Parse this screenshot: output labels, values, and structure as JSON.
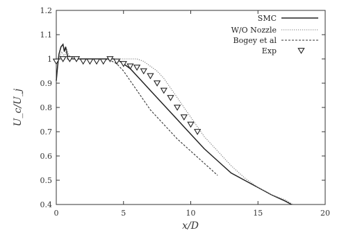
{
  "chart_data": {
    "type": "line",
    "title": "",
    "xlabel": "x/D",
    "ylabel": "U_c/U_j",
    "xlim": [
      0,
      20
    ],
    "ylim": [
      0.4,
      1.2
    ],
    "x_ticks": [
      "0",
      "5",
      "10",
      "15",
      "20"
    ],
    "y_ticks": [
      "0.4",
      "0.5",
      "0.6",
      "0.7",
      "0.8",
      "0.9",
      "1",
      "1.1",
      "1.2"
    ],
    "legend_position": "top-right",
    "grid": false,
    "series": [
      {
        "name": "SMC",
        "style": "solid",
        "color": "#222222",
        "x": [
          0,
          0.1,
          0.2,
          0.35,
          0.5,
          0.6,
          0.7,
          0.8,
          0.9,
          1.0,
          1.2,
          1.5,
          2,
          2.5,
          3,
          3.5,
          4,
          4.3,
          4.6,
          5,
          5.5,
          6,
          6.5,
          7,
          7.5,
          8,
          8.5,
          9,
          9.5,
          10,
          11,
          12,
          13,
          14,
          15,
          16,
          17,
          17.5
        ],
        "y": [
          0.91,
          0.97,
          1.02,
          1.05,
          1.06,
          1.03,
          1.05,
          1.02,
          1.0,
          1.01,
          1.0,
          1.0,
          1.0,
          1.0,
          1.0,
          1.0,
          1.0,
          1.0,
          0.995,
          0.98,
          0.96,
          0.93,
          0.9,
          0.87,
          0.84,
          0.81,
          0.78,
          0.75,
          0.72,
          0.69,
          0.63,
          0.58,
          0.53,
          0.5,
          0.47,
          0.44,
          0.415,
          0.4
        ]
      },
      {
        "name": "W/O Nozzle",
        "style": "dotted",
        "color": "#777777",
        "x": [
          0,
          0.2,
          0.4,
          0.6,
          0.8,
          1.0,
          1.5,
          2,
          3,
          4,
          5,
          5.5,
          6,
          6.5,
          7,
          7.5,
          8,
          8.5,
          9,
          9.5,
          10,
          10.5,
          11,
          12,
          13,
          14,
          15,
          16,
          17,
          17.6
        ],
        "y": [
          0.99,
          1.0,
          1.03,
          1.01,
          1.04,
          1.0,
          1.0,
          1.0,
          1.0,
          1.0,
          1.0,
          1.0,
          1.0,
          0.99,
          0.97,
          0.95,
          0.92,
          0.88,
          0.84,
          0.8,
          0.76,
          0.72,
          0.68,
          0.62,
          0.56,
          0.51,
          0.47,
          0.44,
          0.42,
          0.4
        ]
      },
      {
        "name": "Bogey et al",
        "style": "dashed",
        "color": "#333333",
        "x": [
          0,
          0.5,
          1,
          2,
          3,
          3.5,
          4,
          4.5,
          5,
          5.5,
          6,
          6.5,
          7,
          7.5,
          8,
          9,
          10,
          11,
          12
        ],
        "y": [
          1.0,
          1.0,
          1.0,
          1.0,
          1.0,
          1.0,
          0.995,
          0.98,
          0.95,
          0.91,
          0.87,
          0.83,
          0.79,
          0.76,
          0.73,
          0.67,
          0.62,
          0.57,
          0.52
        ]
      },
      {
        "name": "Exp",
        "style": "markers",
        "marker": "triangle-down",
        "color": "#222222",
        "x": [
          0,
          0.5,
          1,
          1.5,
          2,
          2.5,
          3,
          3.5,
          4,
          4.5,
          5,
          5.5,
          6,
          6.5,
          7,
          7.5,
          8,
          8.5,
          9,
          9.5,
          10,
          10.5
        ],
        "y": [
          0.99,
          1.0,
          1.0,
          1.0,
          0.99,
          0.99,
          0.99,
          0.99,
          1.0,
          0.99,
          0.98,
          0.97,
          0.965,
          0.95,
          0.93,
          0.9,
          0.87,
          0.84,
          0.8,
          0.76,
          0.73,
          0.7
        ]
      }
    ]
  }
}
